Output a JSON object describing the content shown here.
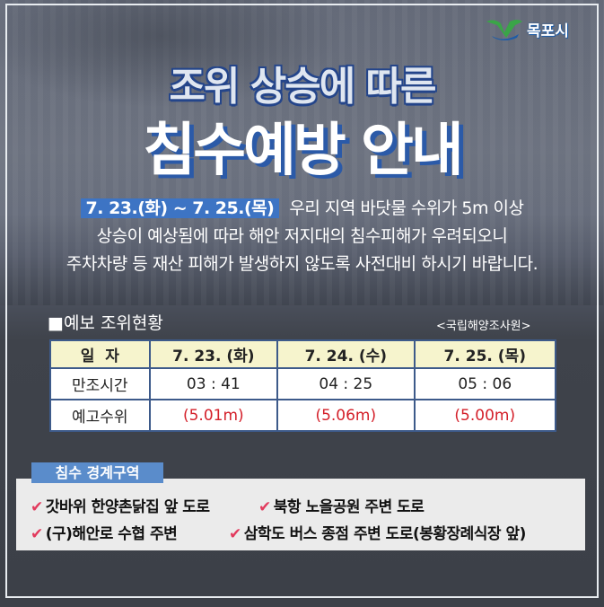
{
  "logo": {
    "text": "목포시"
  },
  "title": {
    "line1": "조위 상승에 따른",
    "line2": "침수예방 안내"
  },
  "notice": {
    "date_range": "7. 23.(화) ~ 7. 25.(목)",
    "line1": "우리 지역 바닷물 수위가 5m 이상",
    "line2": "상승이 예상됨에 따라 해안 저지대의 침수피해가 우려되오니",
    "line3": "주차차량 등 재산 피해가 발생하지 않도록 사전대비 하시기 바랍니다."
  },
  "forecast": {
    "title": "■예보 조위현황",
    "source": "<국립해양조사원>",
    "header": [
      "일  자",
      "7. 23. (화)",
      "7. 24. (수)",
      "7. 25. (목)"
    ],
    "rows": [
      {
        "label": "만조시간",
        "values": [
          "03 : 41",
          "04 : 25",
          "05 : 06"
        ]
      },
      {
        "label": "예고수위",
        "values": [
          "(5.01m)",
          "(5.06m)",
          "(5.00m)"
        ]
      }
    ],
    "highlight_color": "#d4202a"
  },
  "zones": {
    "title": "침수 경계구역",
    "items": [
      "갓바위 한양촌닭집 앞 도로",
      "북항 노을공원 주변 도로",
      "(구)해안로 수협 주변",
      "삼학도 버스 종점 주변 도로(봉황장례식장 앞)"
    ],
    "check_icon": "checkmark-icon",
    "check_symbol": "✔"
  }
}
